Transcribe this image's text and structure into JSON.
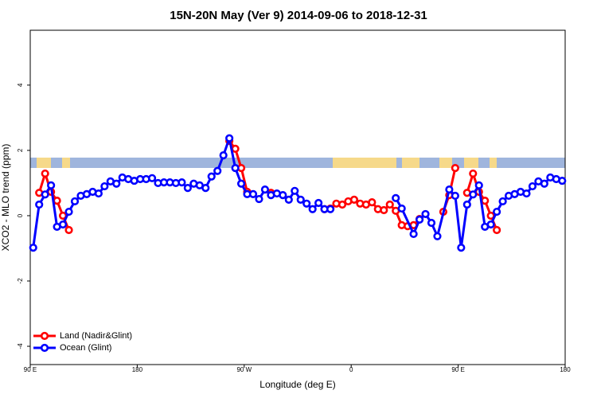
{
  "chart_data": {
    "type": "line",
    "title": "15N-20N May (Ver 9)   2014-09-06 to 2018-12-31",
    "xlabel": "Longitude (deg E)",
    "ylabel": "XCO2 - MLO trend (ppm)",
    "xlim": [
      90,
      540
    ],
    "ylim": [
      -4.56,
      5.68
    ],
    "xticks": [
      {
        "value": 90,
        "label": "90 E"
      },
      180,
      {
        "value": 270,
        "label": "90 W"
      },
      {
        "value": 360,
        "label": "0"
      },
      {
        "value": 450,
        "label": "90 E"
      },
      {
        "value": 540,
        "label": "180"
      }
    ],
    "yticks": [
      -4,
      -2,
      0,
      2,
      4
    ],
    "grid": false,
    "legend": "bottom-left",
    "series": [
      {
        "name": "Land (Nadir&Glint)",
        "color": "#ff0000",
        "x": [
          97.5,
          102.5,
          107.5,
          112.5,
          117.5,
          122.5,
          127.5,
          257.5,
          262.5,
          267.5,
          272.5,
          277.5,
          292.5,
          297.5,
          337.5,
          342.5,
          347.5,
          352.5,
          357.5,
          362.5,
          367.5,
          372.5,
          375,
          377.5,
          382.5,
          387.5,
          392.5,
          397.5,
          402.5,
          407.5,
          412.5,
          417.5,
          427.5,
          437.5,
          442.5,
          447.5,
          452.5,
          457.5,
          462.5,
          467.5,
          472.5,
          477.5,
          482.5
        ],
        "values": [
          0.7,
          1.29,
          0.73,
          0.46,
          0.0,
          -0.44,
          null,
          2.29,
          2.05,
          1.46,
          0.73,
          null,
          0.7,
          null,
          0.2,
          0.22,
          0.37,
          0.34,
          0.44,
          0.49,
          0.37,
          0.34,
          null,
          0.41,
          0.2,
          0.17,
          0.34,
          0.15,
          -0.29,
          -0.32,
          -0.29,
          -0.1,
          null,
          0.12,
          0.63,
          1.46,
          null,
          0.7,
          1.29,
          0.73,
          0.46,
          0.0,
          -0.44
        ]
      },
      {
        "name": "Ocean (Glint)",
        "color": "#0000ff",
        "x": [
          92.5,
          97.5,
          102.5,
          107.5,
          112.5,
          117.5,
          122.5,
          127.5,
          132.5,
          137.5,
          142.5,
          147.5,
          152.5,
          157.5,
          162.5,
          167.5,
          172.5,
          177.5,
          182.5,
          187.5,
          192.5,
          197.5,
          202.5,
          207.5,
          212.5,
          217.5,
          222.5,
          227.5,
          232.5,
          237.5,
          242.5,
          247.5,
          252.5,
          257.5,
          262.5,
          267.5,
          272.5,
          277.5,
          282.5,
          287.5,
          292.5,
          297.5,
          302.5,
          307.5,
          312.5,
          317.5,
          322.5,
          327.5,
          332.5,
          337.5,
          342.5,
          370,
          397.5,
          402.5,
          412.5,
          417.5,
          422.5,
          427.5,
          432.5,
          442.5,
          447.5,
          452.5,
          457.5,
          462.5,
          467.5,
          472.5,
          477.5,
          482.5,
          487.5,
          492.5,
          497.5,
          502.5,
          507.5,
          512.5,
          517.5,
          522.5,
          527.5,
          532.5,
          537.5
        ],
        "values": [
          -0.98,
          0.34,
          0.65,
          0.93,
          -0.34,
          -0.27,
          0.12,
          0.44,
          0.61,
          0.66,
          0.73,
          0.68,
          0.9,
          1.05,
          0.98,
          1.17,
          1.12,
          1.07,
          1.12,
          1.12,
          1.15,
          1.0,
          1.02,
          1.02,
          1.0,
          1.02,
          0.85,
          0.98,
          0.93,
          0.85,
          1.2,
          1.37,
          1.85,
          2.37,
          1.46,
          0.98,
          0.66,
          0.66,
          0.51,
          0.8,
          0.63,
          0.68,
          0.63,
          0.49,
          0.76,
          0.49,
          0.37,
          0.2,
          0.39,
          0.2,
          0.2,
          null,
          0.54,
          0.22,
          -0.56,
          -0.12,
          0.05,
          -0.22,
          -0.63,
          0.8,
          0.61,
          -0.98,
          0.34,
          0.65,
          0.93,
          -0.34,
          -0.27,
          0.12,
          0.44,
          0.61,
          0.66,
          0.73,
          0.68,
          0.9,
          1.05,
          0.98,
          1.17,
          1.12,
          1.07
        ]
      }
    ]
  }
}
